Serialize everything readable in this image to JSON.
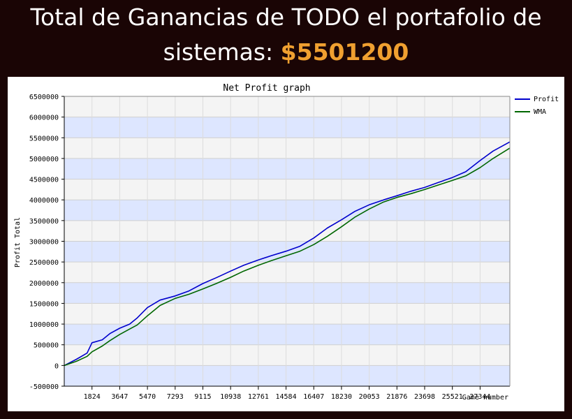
{
  "header": {
    "line1": "Total de Ganancias de TODO el portafolio de",
    "line2_prefix": "sistemas:",
    "amount": "$5501200",
    "amount_color": "#f0a030"
  },
  "chart_data": {
    "type": "line",
    "title": "Net Profit graph",
    "xlabel": "Game number",
    "ylabel": "Profit Total",
    "ylim": [
      -500000,
      6500000
    ],
    "xlim": [
      0,
      29300
    ],
    "y_ticks": [
      6500000,
      6000000,
      5500000,
      5000000,
      4500000,
      4000000,
      3500000,
      3000000,
      2500000,
      2000000,
      1500000,
      1000000,
      500000,
      0,
      -500000
    ],
    "x_ticks": [
      1824,
      3647,
      5470,
      7293,
      9115,
      10938,
      12761,
      14584,
      16407,
      18230,
      20053,
      21876,
      23698,
      25521,
      27344
    ],
    "grid": true,
    "legend_position": "right",
    "series": [
      {
        "name": "Profit",
        "color": "#0000cc",
        "x": [
          0,
          800,
          1500,
          1824,
          2500,
          3000,
          3647,
          4300,
          4800,
          5470,
          6300,
          7293,
          8200,
          9115,
          10000,
          10938,
          11800,
          12761,
          13600,
          14584,
          15500,
          16407,
          17300,
          18230,
          19100,
          20053,
          21000,
          21876,
          22800,
          23698,
          24600,
          25521,
          26400,
          27344,
          28200,
          29300
        ],
        "values": [
          0,
          150000,
          300000,
          550000,
          620000,
          770000,
          900000,
          1000000,
          1150000,
          1400000,
          1580000,
          1680000,
          1800000,
          1980000,
          2120000,
          2280000,
          2420000,
          2550000,
          2650000,
          2760000,
          2880000,
          3080000,
          3320000,
          3520000,
          3720000,
          3880000,
          4000000,
          4100000,
          4210000,
          4300000,
          4420000,
          4540000,
          4680000,
          4950000,
          5180000,
          5400000
        ]
      },
      {
        "name": "WMA",
        "color": "#006600",
        "x": [
          0,
          800,
          1500,
          1824,
          2500,
          3000,
          3647,
          4300,
          4800,
          5470,
          6300,
          7293,
          8200,
          9115,
          10000,
          10938,
          11800,
          12761,
          13600,
          14584,
          15500,
          16407,
          17300,
          18230,
          19100,
          20053,
          21000,
          21876,
          22800,
          23698,
          24600,
          25521,
          26400,
          27344,
          28200,
          29300
        ],
        "values": [
          0,
          100000,
          220000,
          330000,
          470000,
          600000,
          750000,
          880000,
          980000,
          1200000,
          1450000,
          1620000,
          1720000,
          1850000,
          1980000,
          2130000,
          2280000,
          2420000,
          2530000,
          2650000,
          2760000,
          2920000,
          3120000,
          3350000,
          3580000,
          3780000,
          3950000,
          4060000,
          4150000,
          4250000,
          4360000,
          4470000,
          4580000,
          4780000,
          5000000,
          5250000
        ]
      }
    ]
  }
}
